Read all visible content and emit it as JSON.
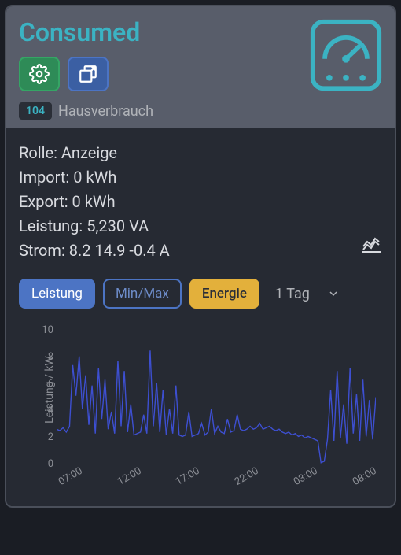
{
  "header": {
    "title": "Consumed",
    "badge_number": "104",
    "badge_label": "Hausverbrauch",
    "accent_color": "#3bb3c3",
    "settings_btn_color": "#2e8b57",
    "expand_btn_color": "#3b5fa3"
  },
  "info": {
    "role_label": "Rolle:",
    "role_value": "Anzeige",
    "import_label": "Import:",
    "import_value": "0 kWh",
    "export_label": "Export:",
    "export_value": "0 kWh",
    "power_label": "Leistung:",
    "power_value": "5,230 VA",
    "current_label": "Strom:",
    "current_value": "8.2 14.9 -0.4 A"
  },
  "controls": {
    "tab_power": "Leistung",
    "tab_minmax": "Min/Max",
    "tab_energy": "Energie",
    "range_value": "1 Tag",
    "tab_primary_bg": "#4c74c4",
    "tab_outline_border": "#4c74c4",
    "tab_yellow_bg": "#e3b03b"
  },
  "chart": {
    "type": "line",
    "y_label": "Leistung / kW",
    "y_ticks": [
      "10",
      "8",
      "6",
      "4",
      "2",
      "0"
    ],
    "ylim": [
      0,
      10
    ],
    "x_ticks": [
      "07:00",
      "12:00",
      "17:00",
      "22:00",
      "03:00",
      "08:00"
    ],
    "line_color": "#3d4fd1",
    "background_color": "#262a33",
    "tick_color": "#8a8d94",
    "series": [
      2.8,
      2.7,
      2.9,
      2.6,
      3.0,
      7.2,
      5.1,
      7.8,
      4.2,
      6.5,
      3.1,
      5.8,
      2.5,
      7.0,
      3.5,
      6.2,
      2.8,
      4.0,
      2.5,
      7.5,
      3.0,
      6.8,
      2.6,
      4.5,
      2.4,
      2.5,
      2.6,
      3.8,
      2.5,
      8.2,
      3.0,
      6.0,
      2.6,
      5.5,
      2.4,
      4.2,
      2.5,
      5.8,
      2.4,
      2.3,
      2.4,
      4.0,
      2.3,
      2.4,
      2.5,
      3.2,
      2.4,
      2.6,
      4.2,
      2.5,
      3.0,
      2.6,
      2.5,
      3.5,
      2.6,
      2.7,
      3.8,
      2.8,
      2.7,
      2.8,
      3.0,
      2.8,
      2.9,
      3.2,
      2.8,
      2.9,
      3.0,
      2.8,
      2.7,
      2.8,
      2.6,
      2.5,
      2.6,
      2.4,
      2.5,
      2.3,
      2.4,
      2.2,
      2.3,
      2.2,
      2.1,
      2.0,
      0.5,
      0.6,
      2.1,
      5.5,
      2.0,
      6.8,
      2.2,
      4.5,
      1.8,
      7.0,
      2.5,
      5.2,
      2.0,
      6.2,
      2.3,
      4.8,
      2.1,
      5.0
    ]
  }
}
